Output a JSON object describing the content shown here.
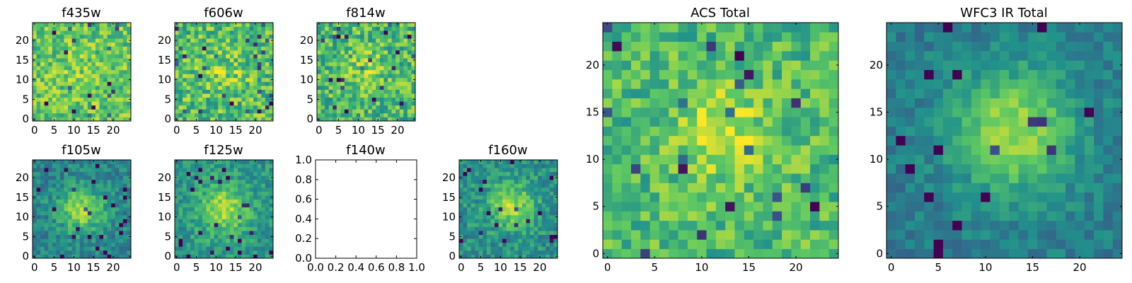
{
  "colors": {
    "colormap": "viridis",
    "viridis_stops": [
      "#440154",
      "#3b528b",
      "#21918c",
      "#5ec962",
      "#fde725"
    ],
    "frame": "#000000",
    "background": "#ffffff"
  },
  "chart_data": [
    {
      "type": "heatmap",
      "colormap": "viridis",
      "title": "f435w",
      "grid_size": 25,
      "xlim": [
        -0.5,
        24.5
      ],
      "ylim": [
        -0.5,
        24.5
      ],
      "xticks": [
        0,
        5,
        10,
        15,
        20
      ],
      "yticks": [
        0,
        5,
        10,
        15,
        20
      ],
      "blob": {
        "cx": 12,
        "cy": 12,
        "amplitude": 0.05,
        "sigma": 4,
        "base": 0.74,
        "noise": 0.2,
        "seed": 11
      }
    },
    {
      "type": "heatmap",
      "colormap": "viridis",
      "title": "f606w",
      "grid_size": 25,
      "xlim": [
        -0.5,
        24.5
      ],
      "ylim": [
        -0.5,
        24.5
      ],
      "xticks": [
        0,
        5,
        10,
        15,
        20
      ],
      "yticks": [
        0,
        5,
        10,
        15,
        20
      ],
      "blob": {
        "cx": 12,
        "cy": 12,
        "amplitude": 0.1,
        "sigma": 4,
        "base": 0.7,
        "noise": 0.22,
        "seed": 22
      }
    },
    {
      "type": "heatmap",
      "colormap": "viridis",
      "title": "f814w",
      "grid_size": 25,
      "xlim": [
        -0.5,
        24.5
      ],
      "ylim": [
        -0.5,
        24.5
      ],
      "xticks": [
        0,
        5,
        10,
        15,
        20
      ],
      "yticks": [
        0,
        5,
        10,
        15,
        20
      ],
      "blob": {
        "cx": 12,
        "cy": 13,
        "amplitude": 0.15,
        "sigma": 3.5,
        "base": 0.68,
        "noise": 0.22,
        "seed": 33
      }
    },
    {
      "type": "heatmap",
      "colormap": "viridis",
      "title": "f105w",
      "grid_size": 25,
      "xlim": [
        -0.5,
        24.5
      ],
      "ylim": [
        -0.5,
        24.5
      ],
      "xticks": [
        0,
        5,
        10,
        15,
        20
      ],
      "yticks": [
        0,
        5,
        10,
        15,
        20
      ],
      "blob": {
        "cx": 12,
        "cy": 12,
        "amplitude": 0.4,
        "sigma": 4,
        "base": 0.45,
        "noise": 0.14,
        "seed": 44
      }
    },
    {
      "type": "heatmap",
      "colormap": "viridis",
      "title": "f125w",
      "grid_size": 25,
      "xlim": [
        -0.5,
        24.5
      ],
      "ylim": [
        -0.5,
        24.5
      ],
      "xticks": [
        0,
        5,
        10,
        15,
        20
      ],
      "yticks": [
        0,
        5,
        10,
        15,
        20
      ],
      "blob": {
        "cx": 12,
        "cy": 12,
        "amplitude": 0.35,
        "sigma": 4.5,
        "base": 0.52,
        "noise": 0.14,
        "seed": 55
      }
    },
    {
      "type": "empty",
      "title": "f140w",
      "xlim": [
        0,
        1
      ],
      "ylim": [
        0,
        1
      ],
      "xticks": [
        "0.0",
        "0.2",
        "0.4",
        "0.6",
        "0.8",
        "1.0"
      ],
      "yticks": [
        "0.0",
        "0.2",
        "0.4",
        "0.6",
        "0.8",
        "1.0"
      ]
    },
    {
      "type": "heatmap",
      "colormap": "viridis",
      "title": "f160w",
      "grid_size": 25,
      "xlim": [
        -0.5,
        24.5
      ],
      "ylim": [
        -0.5,
        24.5
      ],
      "xticks": [
        0,
        5,
        10,
        15,
        20
      ],
      "yticks": [
        0,
        5,
        10,
        15,
        20
      ],
      "blob": {
        "cx": 13,
        "cy": 13,
        "amplitude": 0.35,
        "sigma": 4,
        "base": 0.5,
        "noise": 0.15,
        "seed": 66
      }
    },
    {
      "type": "heatmap",
      "colormap": "viridis",
      "title": "ACS Total",
      "grid_size": 25,
      "xlim": [
        -0.5,
        24.5
      ],
      "ylim": [
        -0.5,
        24.5
      ],
      "xticks": [
        0,
        5,
        10,
        15,
        20
      ],
      "yticks": [
        0,
        5,
        10,
        15,
        20
      ],
      "blob": {
        "cx": 12,
        "cy": 13,
        "amplitude": 0.2,
        "sigma": 4,
        "base": 0.68,
        "noise": 0.18,
        "seed": 77
      }
    },
    {
      "type": "heatmap",
      "colormap": "viridis",
      "title": "WFC3 IR Total",
      "grid_size": 25,
      "xlim": [
        -0.5,
        24.5
      ],
      "ylim": [
        -0.5,
        24.5
      ],
      "xticks": [
        0,
        5,
        10,
        15,
        20
      ],
      "yticks": [
        0,
        5,
        10,
        15,
        20
      ],
      "blob": {
        "cx": 13,
        "cy": 13,
        "amplitude": 0.45,
        "sigma": 4.5,
        "base": 0.42,
        "noise": 0.1,
        "seed": 88
      }
    }
  ]
}
